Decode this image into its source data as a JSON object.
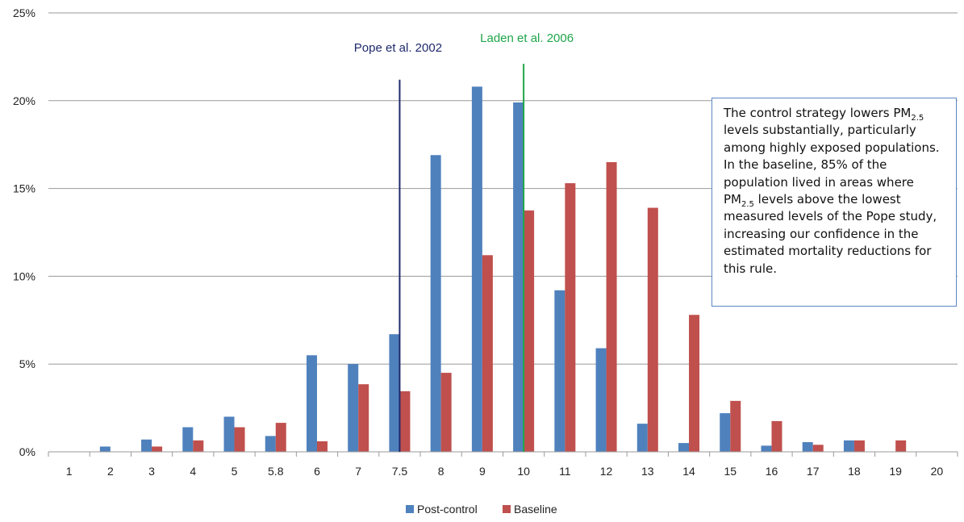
{
  "chart_data": {
    "type": "bar",
    "categories": [
      "1",
      "2",
      "3",
      "4",
      "5",
      "5.8",
      "6",
      "7",
      "7.5",
      "8",
      "9",
      "10",
      "11",
      "12",
      "13",
      "14",
      "15",
      "16",
      "17",
      "18",
      "19",
      "20"
    ],
    "series": [
      {
        "name": "Post-control",
        "color": "#4f81bd",
        "values": [
          0,
          0.3,
          0.7,
          1.4,
          2.0,
          0.9,
          5.5,
          5.0,
          6.7,
          16.9,
          20.8,
          19.9,
          9.2,
          5.9,
          1.6,
          0.5,
          2.2,
          0.35,
          0.55,
          0.65,
          0,
          0
        ]
      },
      {
        "name": "Baseline",
        "color": "#c0504d",
        "values": [
          0,
          0,
          0.3,
          0.65,
          1.4,
          1.65,
          0.6,
          3.85,
          3.45,
          4.5,
          11.2,
          13.75,
          15.3,
          16.5,
          13.9,
          7.8,
          2.9,
          1.75,
          0.4,
          0.65,
          0.65,
          0
        ]
      }
    ],
    "y_ticks": [
      "0%",
      "5%",
      "10%",
      "15%",
      "20%",
      "25%"
    ],
    "ylim": [
      0,
      25
    ],
    "grid": true,
    "legend_position": "bottom",
    "reference_lines": [
      {
        "label": "Pope et al. 2002",
        "x": 7.5,
        "top_value": 21.2,
        "color": "#1f2a6b"
      },
      {
        "label": "Laden et al. 2006",
        "x": 10,
        "top_value": 22.1,
        "color": "#1fa64a"
      }
    ]
  },
  "annotation": {
    "part1": "The control strategy lowers PM",
    "sub1": "2.5",
    "part2": " levels substantially, particularly among highly exposed populations. In the baseline, 85% of the population lived in areas where PM",
    "sub2": "2.5",
    "part3": " levels above the lowest measured levels of the Pope study,  increasing our confidence in the estimated mortality reductions for this rule."
  }
}
